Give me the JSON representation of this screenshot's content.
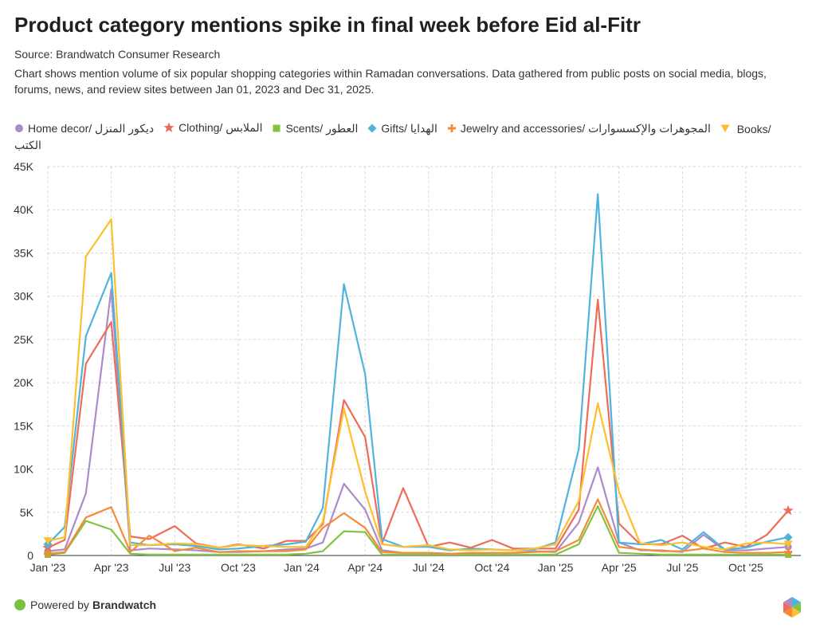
{
  "header": {
    "title": "Product category mentions spike in final week before Eid al-Fitr",
    "source": "Source: Brandwatch Consumer Research",
    "description": "Chart shows mention volume of six popular shopping categories within Ramadan conversations. Data gathered from public posts on social media, blogs, forums, news, and review sites between Jan 01, 2023 and Dec 31, 2025."
  },
  "footer": {
    "powered_by": "Powered by",
    "brand": "Brandwatch"
  },
  "icons": {
    "footer_dot": "green-circle-icon",
    "logo": "hexagon-logo-icon"
  },
  "colors": {
    "home_decor": "#a98cc8",
    "clothing": "#f06c5a",
    "scents": "#82c341",
    "gifts": "#4fb3dc",
    "jewelry": "#f58b36",
    "books": "#fbc02d",
    "grid": "#d6d6d6",
    "axis": "#333333"
  },
  "chart_data": {
    "type": "line",
    "title": "Product category mentions spike in final week before Eid al-Fitr",
    "xlabel": "",
    "ylabel": "",
    "ylim": [
      0,
      45000
    ],
    "y_ticks": [
      "0",
      "5K",
      "10K",
      "15K",
      "20K",
      "25K",
      "30K",
      "35K",
      "40K",
      "45K"
    ],
    "y_tick_values": [
      0,
      5000,
      10000,
      15000,
      20000,
      25000,
      30000,
      35000,
      40000,
      45000
    ],
    "x_ticks": [
      "Jan '23",
      "Apr '23",
      "Jul '23",
      "Oct '23",
      "Jan '24",
      "Apr '24",
      "Jul '24",
      "Oct '24",
      "Jan '25",
      "Apr '25",
      "Jul '25",
      "Oct '25"
    ],
    "x_tick_months": [
      0,
      3,
      6,
      9,
      12,
      15,
      18,
      21,
      24,
      27,
      30,
      33
    ],
    "grid": true,
    "legend_position": "top-left",
    "series": [
      {
        "name": "Home decor/ ديكور المنزل",
        "key": "home_decor",
        "marker": "circle",
        "points": [
          [
            0,
            500
          ],
          [
            0.8,
            700
          ],
          [
            1.8,
            7200
          ],
          [
            3,
            30800
          ],
          [
            3.9,
            600
          ],
          [
            4.8,
            800
          ],
          [
            6,
            700
          ],
          [
            7,
            600
          ],
          [
            8.1,
            400
          ],
          [
            9,
            400
          ],
          [
            10.2,
            500
          ],
          [
            11.3,
            700
          ],
          [
            12.2,
            800
          ],
          [
            13,
            1500
          ],
          [
            14,
            8300
          ],
          [
            15,
            5300
          ],
          [
            15.8,
            600
          ],
          [
            16.8,
            300
          ],
          [
            18,
            300
          ],
          [
            19,
            200
          ],
          [
            20,
            200
          ],
          [
            21,
            300
          ],
          [
            22,
            300
          ],
          [
            23,
            500
          ],
          [
            24,
            400
          ],
          [
            25.1,
            3800
          ],
          [
            26,
            10200
          ],
          [
            27,
            1500
          ],
          [
            28,
            600
          ],
          [
            29,
            600
          ],
          [
            30,
            400
          ],
          [
            31,
            2400
          ],
          [
            32,
            600
          ],
          [
            33,
            600
          ],
          [
            34,
            800
          ],
          [
            35,
            1000
          ]
        ]
      },
      {
        "name": "Clothing/ الملابس",
        "key": "clothing",
        "marker": "star",
        "points": [
          [
            0,
            900
          ],
          [
            0.8,
            1800
          ],
          [
            1.8,
            22200
          ],
          [
            3,
            27000
          ],
          [
            3.9,
            2200
          ],
          [
            4.8,
            1900
          ],
          [
            6,
            3400
          ],
          [
            7,
            1400
          ],
          [
            8.1,
            900
          ],
          [
            9,
            1300
          ],
          [
            10.2,
            800
          ],
          [
            11.3,
            1700
          ],
          [
            12.2,
            1700
          ],
          [
            13,
            3600
          ],
          [
            14,
            18000
          ],
          [
            15,
            13700
          ],
          [
            15.8,
            1400
          ],
          [
            16.8,
            7800
          ],
          [
            18,
            1000
          ],
          [
            19,
            1500
          ],
          [
            20,
            900
          ],
          [
            21,
            1800
          ],
          [
            22,
            800
          ],
          [
            23,
            800
          ],
          [
            24,
            800
          ],
          [
            25.1,
            5300
          ],
          [
            26,
            29600
          ],
          [
            27,
            3700
          ],
          [
            28,
            1300
          ],
          [
            29,
            1300
          ],
          [
            30,
            2300
          ],
          [
            31,
            800
          ],
          [
            32,
            1500
          ],
          [
            33,
            1000
          ],
          [
            34,
            2400
          ],
          [
            35,
            5200
          ]
        ]
      },
      {
        "name": "Scents/ العطور",
        "key": "scents",
        "marker": "square",
        "points": [
          [
            0,
            100
          ],
          [
            0.8,
            300
          ],
          [
            1.8,
            4000
          ],
          [
            3,
            3000
          ],
          [
            3.9,
            200
          ],
          [
            4.8,
            100
          ],
          [
            6,
            100
          ],
          [
            7,
            100
          ],
          [
            8.1,
            100
          ],
          [
            9,
            100
          ],
          [
            10.2,
            100
          ],
          [
            11.3,
            100
          ],
          [
            12.2,
            200
          ],
          [
            13,
            500
          ],
          [
            14,
            2800
          ],
          [
            15,
            2700
          ],
          [
            15.8,
            100
          ],
          [
            16.8,
            100
          ],
          [
            18,
            100
          ],
          [
            19,
            100
          ],
          [
            20,
            100
          ],
          [
            21,
            100
          ],
          [
            22,
            100
          ],
          [
            23,
            100
          ],
          [
            24,
            100
          ],
          [
            25.1,
            1300
          ],
          [
            26,
            5700
          ],
          [
            27,
            300
          ],
          [
            28,
            200
          ],
          [
            29,
            100
          ],
          [
            30,
            100
          ],
          [
            31,
            100
          ],
          [
            32,
            100
          ],
          [
            33,
            100
          ],
          [
            34,
            100
          ],
          [
            35,
            100
          ]
        ]
      },
      {
        "name": "Gifts/ الهدايا",
        "key": "gifts",
        "marker": "diamond",
        "points": [
          [
            0,
            1300
          ],
          [
            0.8,
            3300
          ],
          [
            1.8,
            25400
          ],
          [
            3,
            32700
          ],
          [
            3.9,
            1500
          ],
          [
            4.8,
            1200
          ],
          [
            6,
            1300
          ],
          [
            7,
            1100
          ],
          [
            8.1,
            700
          ],
          [
            9,
            800
          ],
          [
            10.2,
            1100
          ],
          [
            11.3,
            1300
          ],
          [
            12.2,
            1600
          ],
          [
            13,
            5500
          ],
          [
            14,
            31400
          ],
          [
            15,
            21000
          ],
          [
            15.8,
            1900
          ],
          [
            16.8,
            1000
          ],
          [
            18,
            1000
          ],
          [
            19,
            600
          ],
          [
            20,
            800
          ],
          [
            21,
            700
          ],
          [
            22,
            600
          ],
          [
            23,
            700
          ],
          [
            24,
            1500
          ],
          [
            25.1,
            12300
          ],
          [
            26,
            41800
          ],
          [
            27,
            1500
          ],
          [
            28,
            1300
          ],
          [
            29,
            1800
          ],
          [
            30,
            700
          ],
          [
            31,
            2700
          ],
          [
            32,
            700
          ],
          [
            33,
            900
          ],
          [
            34,
            1600
          ],
          [
            35,
            2100
          ]
        ]
      },
      {
        "name": "Jewelry and accessories/ المجوهرات والإكسسوارات",
        "key": "jewelry",
        "marker": "plus",
        "points": [
          [
            0,
            200
          ],
          [
            0.8,
            400
          ],
          [
            1.8,
            4400
          ],
          [
            3,
            5600
          ],
          [
            3.9,
            400
          ],
          [
            4.8,
            2300
          ],
          [
            6,
            500
          ],
          [
            7,
            900
          ],
          [
            8.1,
            400
          ],
          [
            9,
            500
          ],
          [
            10.2,
            500
          ],
          [
            11.3,
            500
          ],
          [
            12.2,
            700
          ],
          [
            13,
            3200
          ],
          [
            14,
            4900
          ],
          [
            15,
            3200
          ],
          [
            15.8,
            400
          ],
          [
            16.8,
            300
          ],
          [
            18,
            300
          ],
          [
            19,
            200
          ],
          [
            20,
            300
          ],
          [
            21,
            300
          ],
          [
            22,
            300
          ],
          [
            23,
            400
          ],
          [
            24,
            500
          ],
          [
            25.1,
            1800
          ],
          [
            26,
            6500
          ],
          [
            27,
            1000
          ],
          [
            28,
            700
          ],
          [
            29,
            500
          ],
          [
            30,
            500
          ],
          [
            31,
            800
          ],
          [
            32,
            400
          ],
          [
            33,
            300
          ],
          [
            34,
            300
          ],
          [
            35,
            400
          ]
        ]
      },
      {
        "name": "Books/ الكتب",
        "key": "books",
        "marker": "triangle",
        "points": [
          [
            0,
            1700
          ],
          [
            0.8,
            2100
          ],
          [
            1.8,
            34600
          ],
          [
            3,
            38900
          ],
          [
            3.9,
            1200
          ],
          [
            4.8,
            1200
          ],
          [
            6,
            1400
          ],
          [
            7,
            1300
          ],
          [
            8.1,
            900
          ],
          [
            9,
            1200
          ],
          [
            10.2,
            1100
          ],
          [
            11.3,
            1000
          ],
          [
            12.2,
            1000
          ],
          [
            13,
            3900
          ],
          [
            14,
            17000
          ],
          [
            15,
            7400
          ],
          [
            15.8,
            1300
          ],
          [
            16.8,
            1000
          ],
          [
            18,
            1200
          ],
          [
            19,
            700
          ],
          [
            20,
            600
          ],
          [
            21,
            700
          ],
          [
            22,
            600
          ],
          [
            23,
            800
          ],
          [
            24,
            1300
          ],
          [
            25.1,
            6300
          ],
          [
            26,
            17600
          ],
          [
            27,
            7400
          ],
          [
            28,
            1400
          ],
          [
            29,
            1200
          ],
          [
            30,
            1500
          ],
          [
            31,
            1000
          ],
          [
            32,
            700
          ],
          [
            33,
            1400
          ],
          [
            34,
            1500
          ],
          [
            35,
            1300
          ]
        ]
      }
    ]
  }
}
